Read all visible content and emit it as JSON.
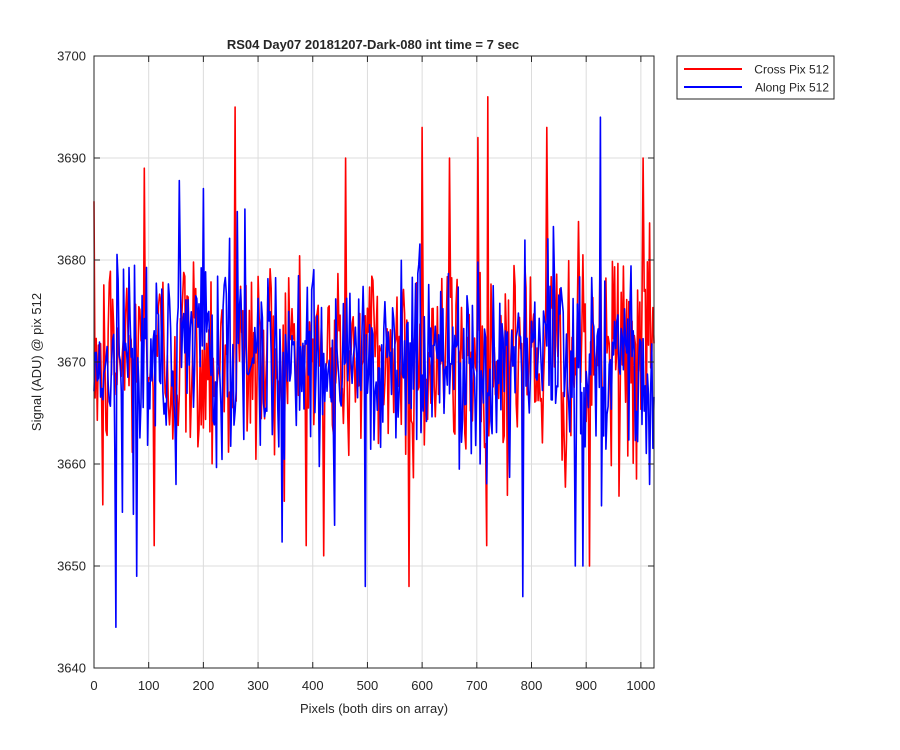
{
  "chart_data": {
    "type": "line",
    "title": "RS04 Day07 20181207-Dark-080 int time = 7 sec",
    "xlabel": "Pixels (both dirs on array)",
    "ylabel": "Signal (ADU) @ pix 512",
    "xlim": [
      0,
      1024
    ],
    "ylim": [
      3640,
      3700
    ],
    "xticks": [
      0,
      100,
      200,
      300,
      400,
      500,
      600,
      700,
      800,
      900,
      1000
    ],
    "yticks": [
      3640,
      3650,
      3660,
      3670,
      3680,
      3690,
      3700
    ],
    "grid": true,
    "legend_position": "outside-top-right",
    "x": {
      "start": 0,
      "end": 1024,
      "step": 2
    },
    "series": [
      {
        "name": "Cross Pix 512",
        "color": "#ff0000",
        "mean": 3670.5,
        "noise_sigma": 5.5,
        "peaks": [
          [
            258,
            3695
          ],
          [
            720,
            3696
          ],
          [
            828,
            3693
          ],
          [
            600,
            3693
          ],
          [
            702,
            3692
          ],
          [
            92,
            3689
          ],
          [
            110,
            3652
          ],
          [
            420,
            3651
          ],
          [
            575,
            3648
          ],
          [
            905,
            3650
          ],
          [
            1004,
            3690
          ],
          [
            460,
            3690
          ],
          [
            650,
            3690
          ],
          [
            16,
            3656
          ]
        ]
      },
      {
        "name": "Along Pix 512",
        "color": "#0000ff",
        "mean": 3670.5,
        "noise_sigma": 5.0,
        "peaks": [
          [
            925,
            3694
          ],
          [
            40,
            3644
          ],
          [
            783,
            3647
          ],
          [
            495,
            3648
          ],
          [
            77,
            3649
          ],
          [
            880,
            3650
          ],
          [
            893,
            3650
          ],
          [
            440,
            3654
          ],
          [
            1015,
            3658
          ],
          [
            150,
            3658
          ],
          [
            200,
            3687
          ],
          [
            275,
            3685
          ]
        ]
      }
    ]
  }
}
